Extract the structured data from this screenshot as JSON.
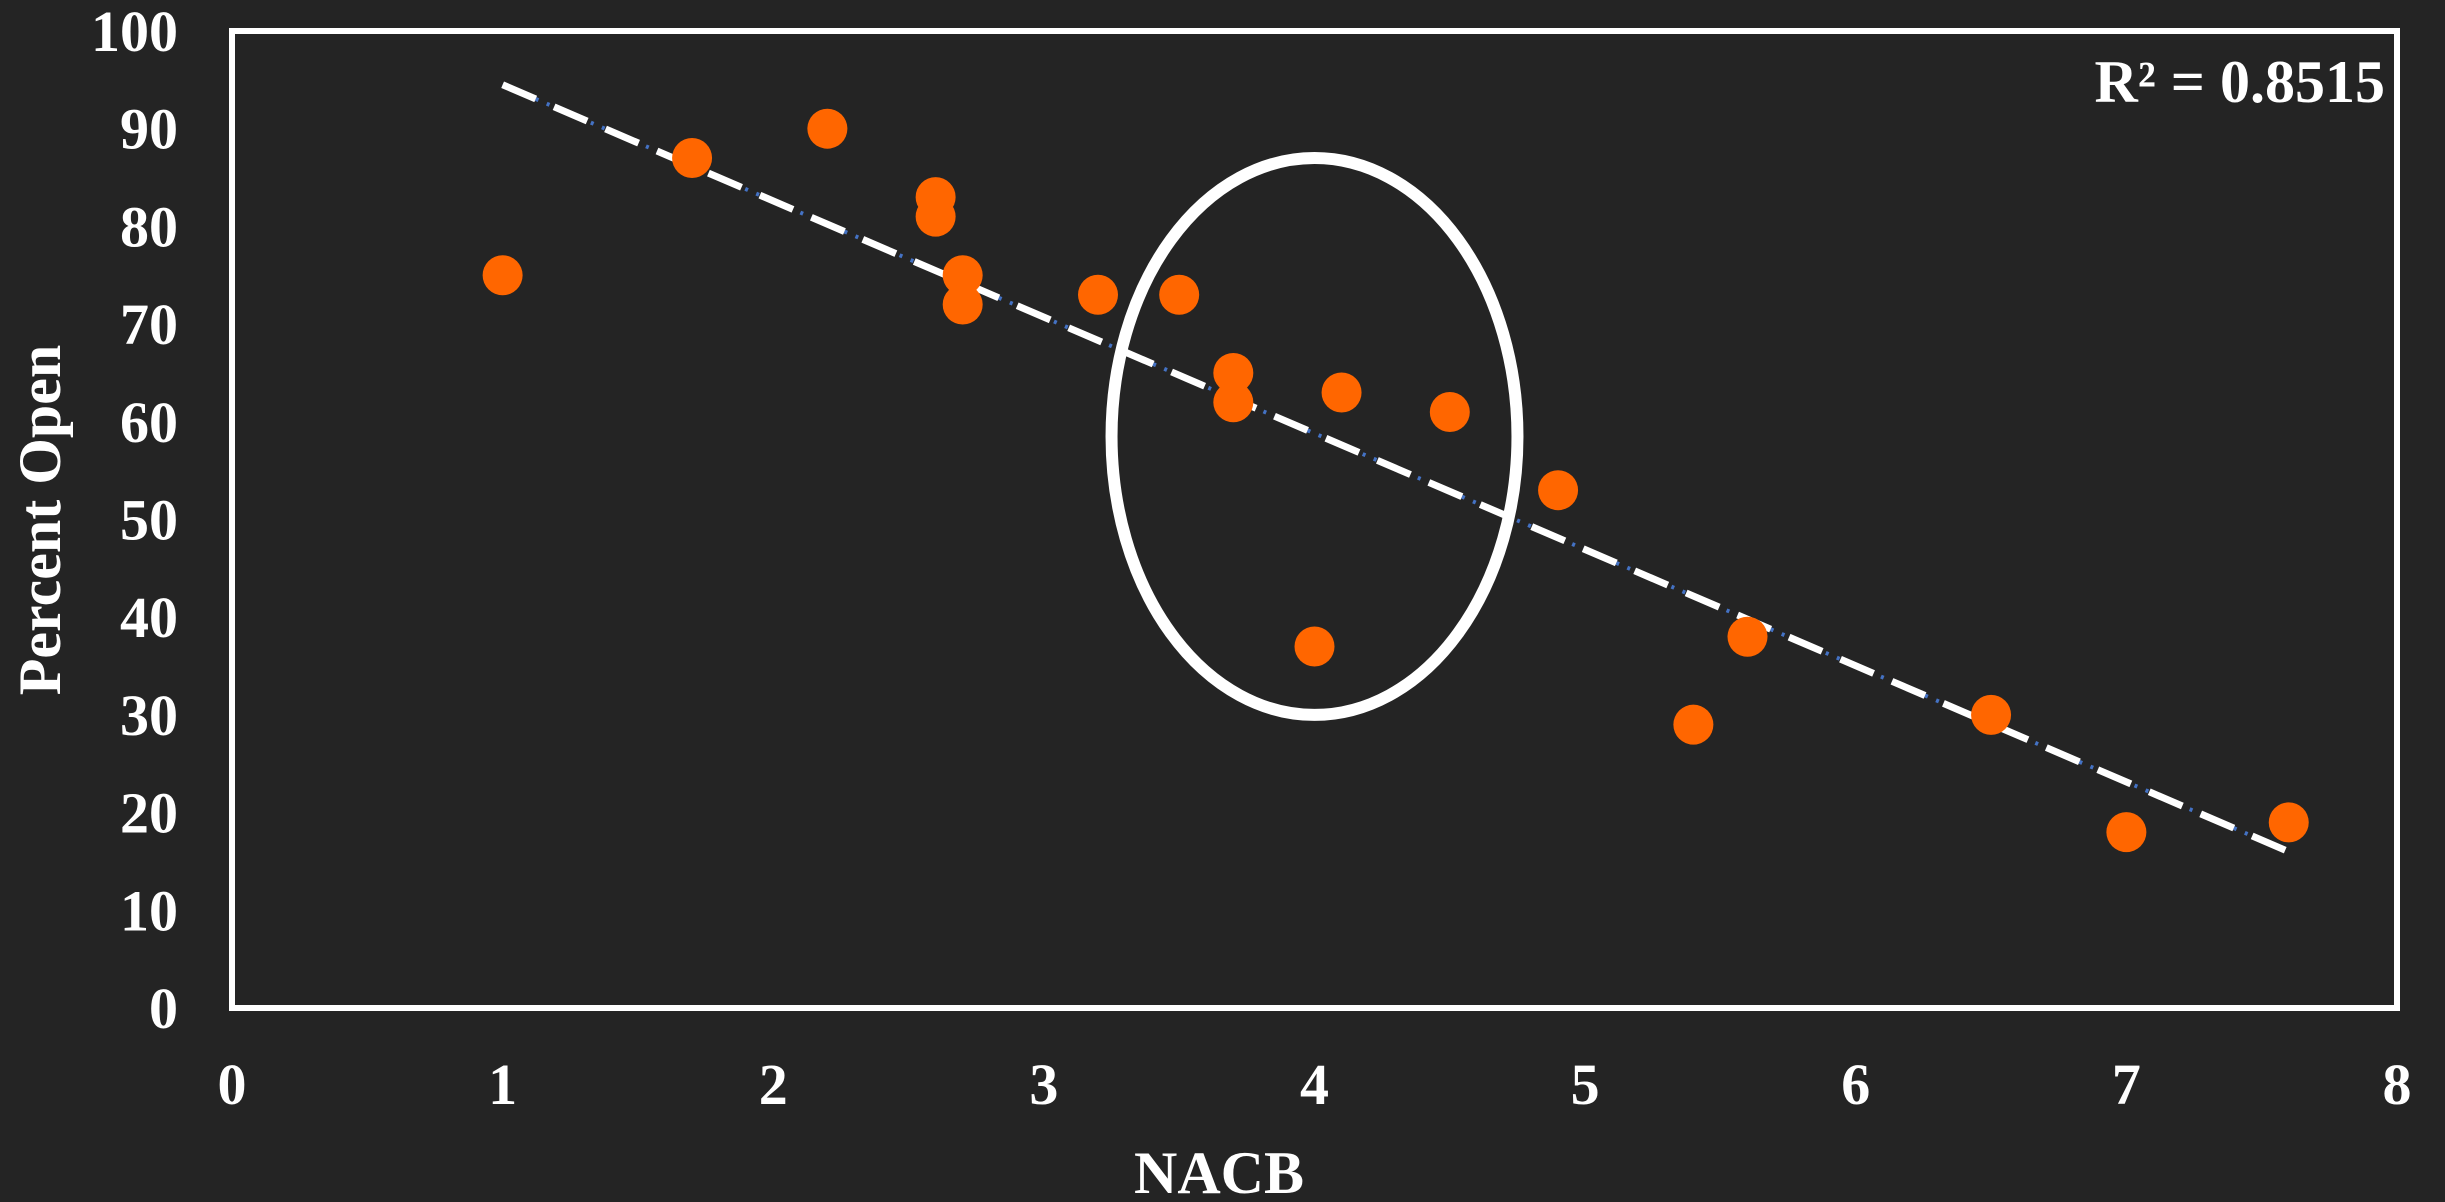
{
  "colors": {
    "background": "#242424",
    "axes": "#ffffff",
    "points": "#ff6600",
    "trendline_dash": "#ffffff",
    "trendline_dot": "#4472c4",
    "highlight_ellipse": "#ffffff"
  },
  "chart_data": {
    "type": "scatter",
    "title": "",
    "xlabel": "NACB",
    "ylabel": "Percent Open",
    "xlim": [
      0,
      8
    ],
    "ylim": [
      0,
      100
    ],
    "x_ticks": [
      "0",
      "1",
      "2",
      "3",
      "4",
      "5",
      "6",
      "7",
      "8"
    ],
    "y_ticks": [
      "0",
      "10",
      "20",
      "30",
      "40",
      "50",
      "60",
      "70",
      "80",
      "90",
      "100"
    ],
    "grid": false,
    "points": [
      {
        "x": 1.0,
        "y": 75
      },
      {
        "x": 1.7,
        "y": 87
      },
      {
        "x": 2.2,
        "y": 90
      },
      {
        "x": 2.6,
        "y": 83
      },
      {
        "x": 2.6,
        "y": 81
      },
      {
        "x": 2.7,
        "y": 75
      },
      {
        "x": 2.7,
        "y": 72
      },
      {
        "x": 3.2,
        "y": 73
      },
      {
        "x": 3.5,
        "y": 73
      },
      {
        "x": 3.7,
        "y": 65
      },
      {
        "x": 3.7,
        "y": 62
      },
      {
        "x": 4.0,
        "y": 37
      },
      {
        "x": 4.1,
        "y": 63
      },
      {
        "x": 4.5,
        "y": 61
      },
      {
        "x": 4.9,
        "y": 53
      },
      {
        "x": 5.4,
        "y": 29
      },
      {
        "x": 5.6,
        "y": 38
      },
      {
        "x": 6.5,
        "y": 30
      },
      {
        "x": 7.0,
        "y": 18
      },
      {
        "x": 7.6,
        "y": 19
      }
    ],
    "trendline": {
      "type": "linear",
      "x_range": [
        1.0,
        7.6
      ],
      "y_start": 94.5,
      "y_end": 16.0,
      "r_squared_label": "R² = 0.8515"
    },
    "highlight": {
      "shape": "ellipse",
      "center_x": 4.0,
      "center_y": 58.5,
      "radius_x": 0.75,
      "radius_y": 28.5
    }
  }
}
